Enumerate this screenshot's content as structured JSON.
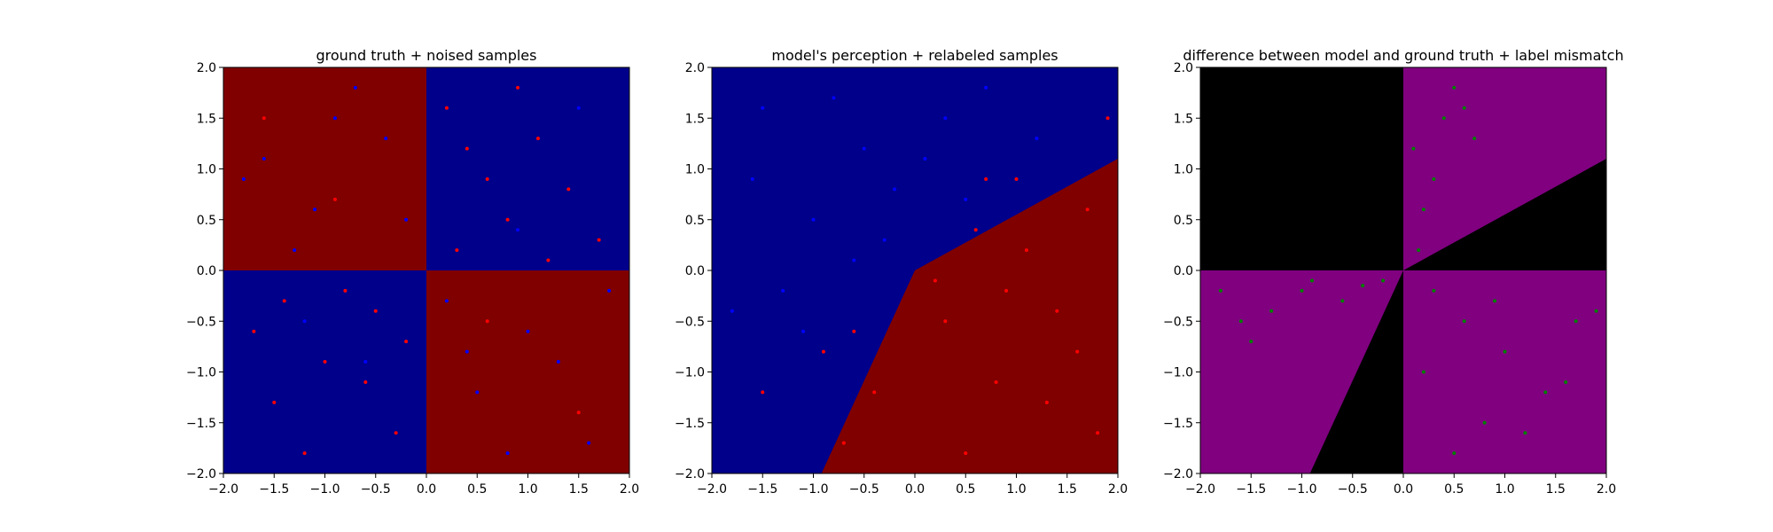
{
  "chart_data": [
    {
      "type": "scatter",
      "title": "ground truth + noised samples",
      "xlabel": "",
      "ylabel": "",
      "xlim": [
        -2.0,
        2.0
      ],
      "ylim": [
        -2.0,
        2.0
      ],
      "xticks": [
        "−2.0",
        "−1.5",
        "−1.0",
        "−0.5",
        "0.0",
        "0.5",
        "1.0",
        "1.5",
        "2.0"
      ],
      "yticks": [
        "−2.0",
        "−1.5",
        "−1.0",
        "−0.5",
        "0.0",
        "0.5",
        "1.0",
        "1.5",
        "2.0"
      ],
      "background": "quadrant checkerboard: red where x*y<0, navy where x*y>0",
      "region_colors": {
        "red": "#800000",
        "blue": "#00008b"
      },
      "point_colors": {
        "red": "#ff0000",
        "blue": "#0000ff"
      },
      "series": [
        {
          "label_color": "red",
          "points": [
            [
              0.2,
              1.6
            ],
            [
              0.4,
              1.2
            ],
            [
              0.6,
              0.9
            ],
            [
              0.8,
              0.5
            ],
            [
              1.1,
              1.3
            ],
            [
              1.4,
              0.8
            ],
            [
              1.7,
              0.3
            ],
            [
              0.3,
              0.2
            ],
            [
              0.9,
              1.8
            ],
            [
              1.2,
              0.1
            ],
            [
              -0.5,
              -0.4
            ],
            [
              -1.0,
              -0.9
            ],
            [
              -1.5,
              -1.3
            ],
            [
              -0.3,
              -1.6
            ],
            [
              -0.8,
              -0.2
            ],
            [
              -1.7,
              -0.6
            ],
            [
              -0.6,
              -1.1
            ],
            [
              -1.2,
              -1.8
            ],
            [
              -0.2,
              -0.7
            ],
            [
              -1.4,
              -0.3
            ],
            [
              0.6,
              -0.5
            ],
            [
              1.5,
              -1.4
            ],
            [
              -0.9,
              0.7
            ],
            [
              -1.6,
              1.5
            ]
          ]
        },
        {
          "label_color": "blue",
          "points": [
            [
              -0.4,
              1.3
            ],
            [
              -1.1,
              0.6
            ],
            [
              -1.6,
              1.1
            ],
            [
              -0.7,
              1.8
            ],
            [
              -1.3,
              0.2
            ],
            [
              -0.2,
              0.5
            ],
            [
              -1.8,
              0.9
            ],
            [
              -0.9,
              1.5
            ],
            [
              0.5,
              -1.2
            ],
            [
              1.0,
              -0.6
            ],
            [
              1.6,
              -1.7
            ],
            [
              0.2,
              -0.3
            ],
            [
              1.3,
              -0.9
            ],
            [
              0.8,
              -1.8
            ],
            [
              1.8,
              -0.2
            ],
            [
              0.4,
              -0.8
            ],
            [
              0.9,
              0.4
            ],
            [
              1.5,
              1.6
            ],
            [
              -0.6,
              -0.9
            ],
            [
              -1.2,
              -0.5
            ]
          ]
        }
      ]
    },
    {
      "type": "scatter",
      "title": "model's perception + relabeled samples",
      "xlabel": "",
      "ylabel": "",
      "xlim": [
        -2.0,
        2.0
      ],
      "ylim": [
        -2.0,
        2.0
      ],
      "xticks": [
        "−2.0",
        "−1.5",
        "−1.0",
        "−0.5",
        "0.0",
        "0.5",
        "1.0",
        "1.5",
        "2.0"
      ],
      "yticks": [
        "−2.0",
        "−1.5",
        "−1.0",
        "−0.5",
        "0.0",
        "0.5",
        "1.0",
        "1.5",
        "2.0"
      ],
      "decision_boundary": [
        [
          -0.92,
          -2.0
        ],
        [
          0.0,
          0.0
        ],
        [
          2.0,
          1.1
        ]
      ],
      "region_colors": {
        "red": "#800000",
        "blue": "#00008b"
      },
      "point_colors": {
        "red": "#ff0000",
        "blue": "#0000ff"
      },
      "series": [
        {
          "label_color": "red",
          "points": [
            [
              0.3,
              -0.5
            ],
            [
              0.8,
              -1.1
            ],
            [
              1.4,
              -0.4
            ],
            [
              1.8,
              -1.6
            ],
            [
              0.5,
              -1.8
            ],
            [
              1.1,
              0.2
            ],
            [
              1.7,
              0.6
            ],
            [
              0.2,
              -0.1
            ],
            [
              -0.4,
              -1.2
            ],
            [
              -0.7,
              -1.7
            ],
            [
              0.9,
              -0.2
            ],
            [
              1.3,
              -1.3
            ],
            [
              0.6,
              0.4
            ],
            [
              0.7,
              0.9
            ],
            [
              1.0,
              0.9
            ],
            [
              -0.9,
              -0.8
            ],
            [
              -1.5,
              -1.2
            ],
            [
              -0.6,
              -0.6
            ],
            [
              1.9,
              1.5
            ],
            [
              1.6,
              -0.8
            ]
          ]
        },
        {
          "label_color": "blue",
          "points": [
            [
              -1.0,
              0.5
            ],
            [
              -0.5,
              1.2
            ],
            [
              -1.5,
              1.6
            ],
            [
              -0.2,
              0.8
            ],
            [
              -1.3,
              -0.2
            ],
            [
              -0.6,
              0.1
            ],
            [
              -1.8,
              -0.4
            ],
            [
              0.3,
              1.5
            ],
            [
              0.7,
              1.8
            ],
            [
              1.2,
              1.3
            ],
            [
              -1.1,
              -0.6
            ],
            [
              -0.3,
              0.3
            ],
            [
              -1.6,
              0.9
            ],
            [
              0.1,
              1.1
            ],
            [
              -0.8,
              1.7
            ],
            [
              0.5,
              0.7
            ]
          ]
        }
      ]
    },
    {
      "type": "scatter",
      "title": "difference between model and ground truth + label mismatch",
      "xlabel": "",
      "ylabel": "",
      "xlim": [
        -2.0,
        2.0
      ],
      "ylim": [
        -2.0,
        2.0
      ],
      "xticks": [
        "−2.0",
        "−1.5",
        "−1.0",
        "−0.5",
        "0.0",
        "0.5",
        "1.0",
        "1.5",
        "2.0"
      ],
      "yticks": [
        "−2.0",
        "−1.5",
        "−1.0",
        "−0.5",
        "0.0",
        "0.5",
        "1.0",
        "1.5",
        "2.0"
      ],
      "region_colors": {
        "mismatch": "#800080",
        "match": "#000000"
      },
      "point_colors": {
        "mismatch": "#008000"
      },
      "series": [
        {
          "label_color": "mismatch",
          "points": [
            [
              0.1,
              1.2
            ],
            [
              0.2,
              0.6
            ],
            [
              0.3,
              0.9
            ],
            [
              0.15,
              0.2
            ],
            [
              0.5,
              1.8
            ],
            [
              0.6,
              1.6
            ],
            [
              0.7,
              1.3
            ],
            [
              0.4,
              1.5
            ],
            [
              0.3,
              -0.2
            ],
            [
              0.6,
              -0.5
            ],
            [
              1.0,
              -0.8
            ],
            [
              1.4,
              -1.2
            ],
            [
              0.8,
              -1.5
            ],
            [
              0.2,
              -1.0
            ],
            [
              1.7,
              -0.5
            ],
            [
              1.9,
              -0.4
            ],
            [
              0.5,
              -1.8
            ],
            [
              1.2,
              -1.6
            ],
            [
              1.6,
              -1.1
            ],
            [
              0.9,
              -0.3
            ],
            [
              -0.2,
              -0.1
            ],
            [
              -0.6,
              -0.3
            ],
            [
              -1.0,
              -0.2
            ],
            [
              -1.3,
              -0.4
            ],
            [
              -1.6,
              -0.5
            ],
            [
              -1.8,
              -0.2
            ],
            [
              -0.9,
              -0.1
            ],
            [
              -1.5,
              -0.7
            ],
            [
              -0.4,
              -0.15
            ]
          ]
        }
      ]
    }
  ]
}
